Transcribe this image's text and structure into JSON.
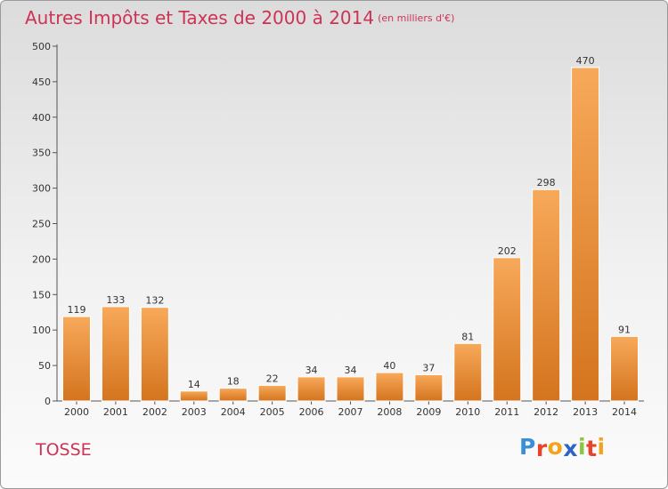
{
  "header": {
    "title": "Autres Impôts et Taxes de 2000 à 2014",
    "unit": "(en milliers d'€)"
  },
  "footer": {
    "town": "TOSSE",
    "logo_letters": [
      "P",
      "r",
      "o",
      "x",
      "i",
      "t",
      "i"
    ],
    "logo_colors": [
      "#3a8fd6",
      "#e8442c",
      "#f2a51c",
      "#2c64c8",
      "#8cc63e",
      "#e8442c",
      "#f2a51c"
    ]
  },
  "chart_data": {
    "type": "bar",
    "title": "Autres Impôts et Taxes de 2000 à 2014",
    "subtitle": "(en milliers d'€)",
    "xlabel": "",
    "ylabel": "",
    "categories": [
      "2000",
      "2001",
      "2002",
      "2003",
      "2004",
      "2005",
      "2006",
      "2007",
      "2008",
      "2009",
      "2010",
      "2011",
      "2012",
      "2013",
      "2014"
    ],
    "values": [
      119,
      133,
      132,
      14,
      18,
      22,
      34,
      34,
      40,
      37,
      81,
      202,
      298,
      470,
      91
    ],
    "ylim": [
      0,
      500
    ],
    "yticks": [
      0,
      50,
      100,
      150,
      200,
      250,
      300,
      350,
      400,
      450,
      500
    ],
    "grid": false,
    "bar_color_light": "#f7a95a",
    "bar_color_dark": "#d4741e"
  }
}
